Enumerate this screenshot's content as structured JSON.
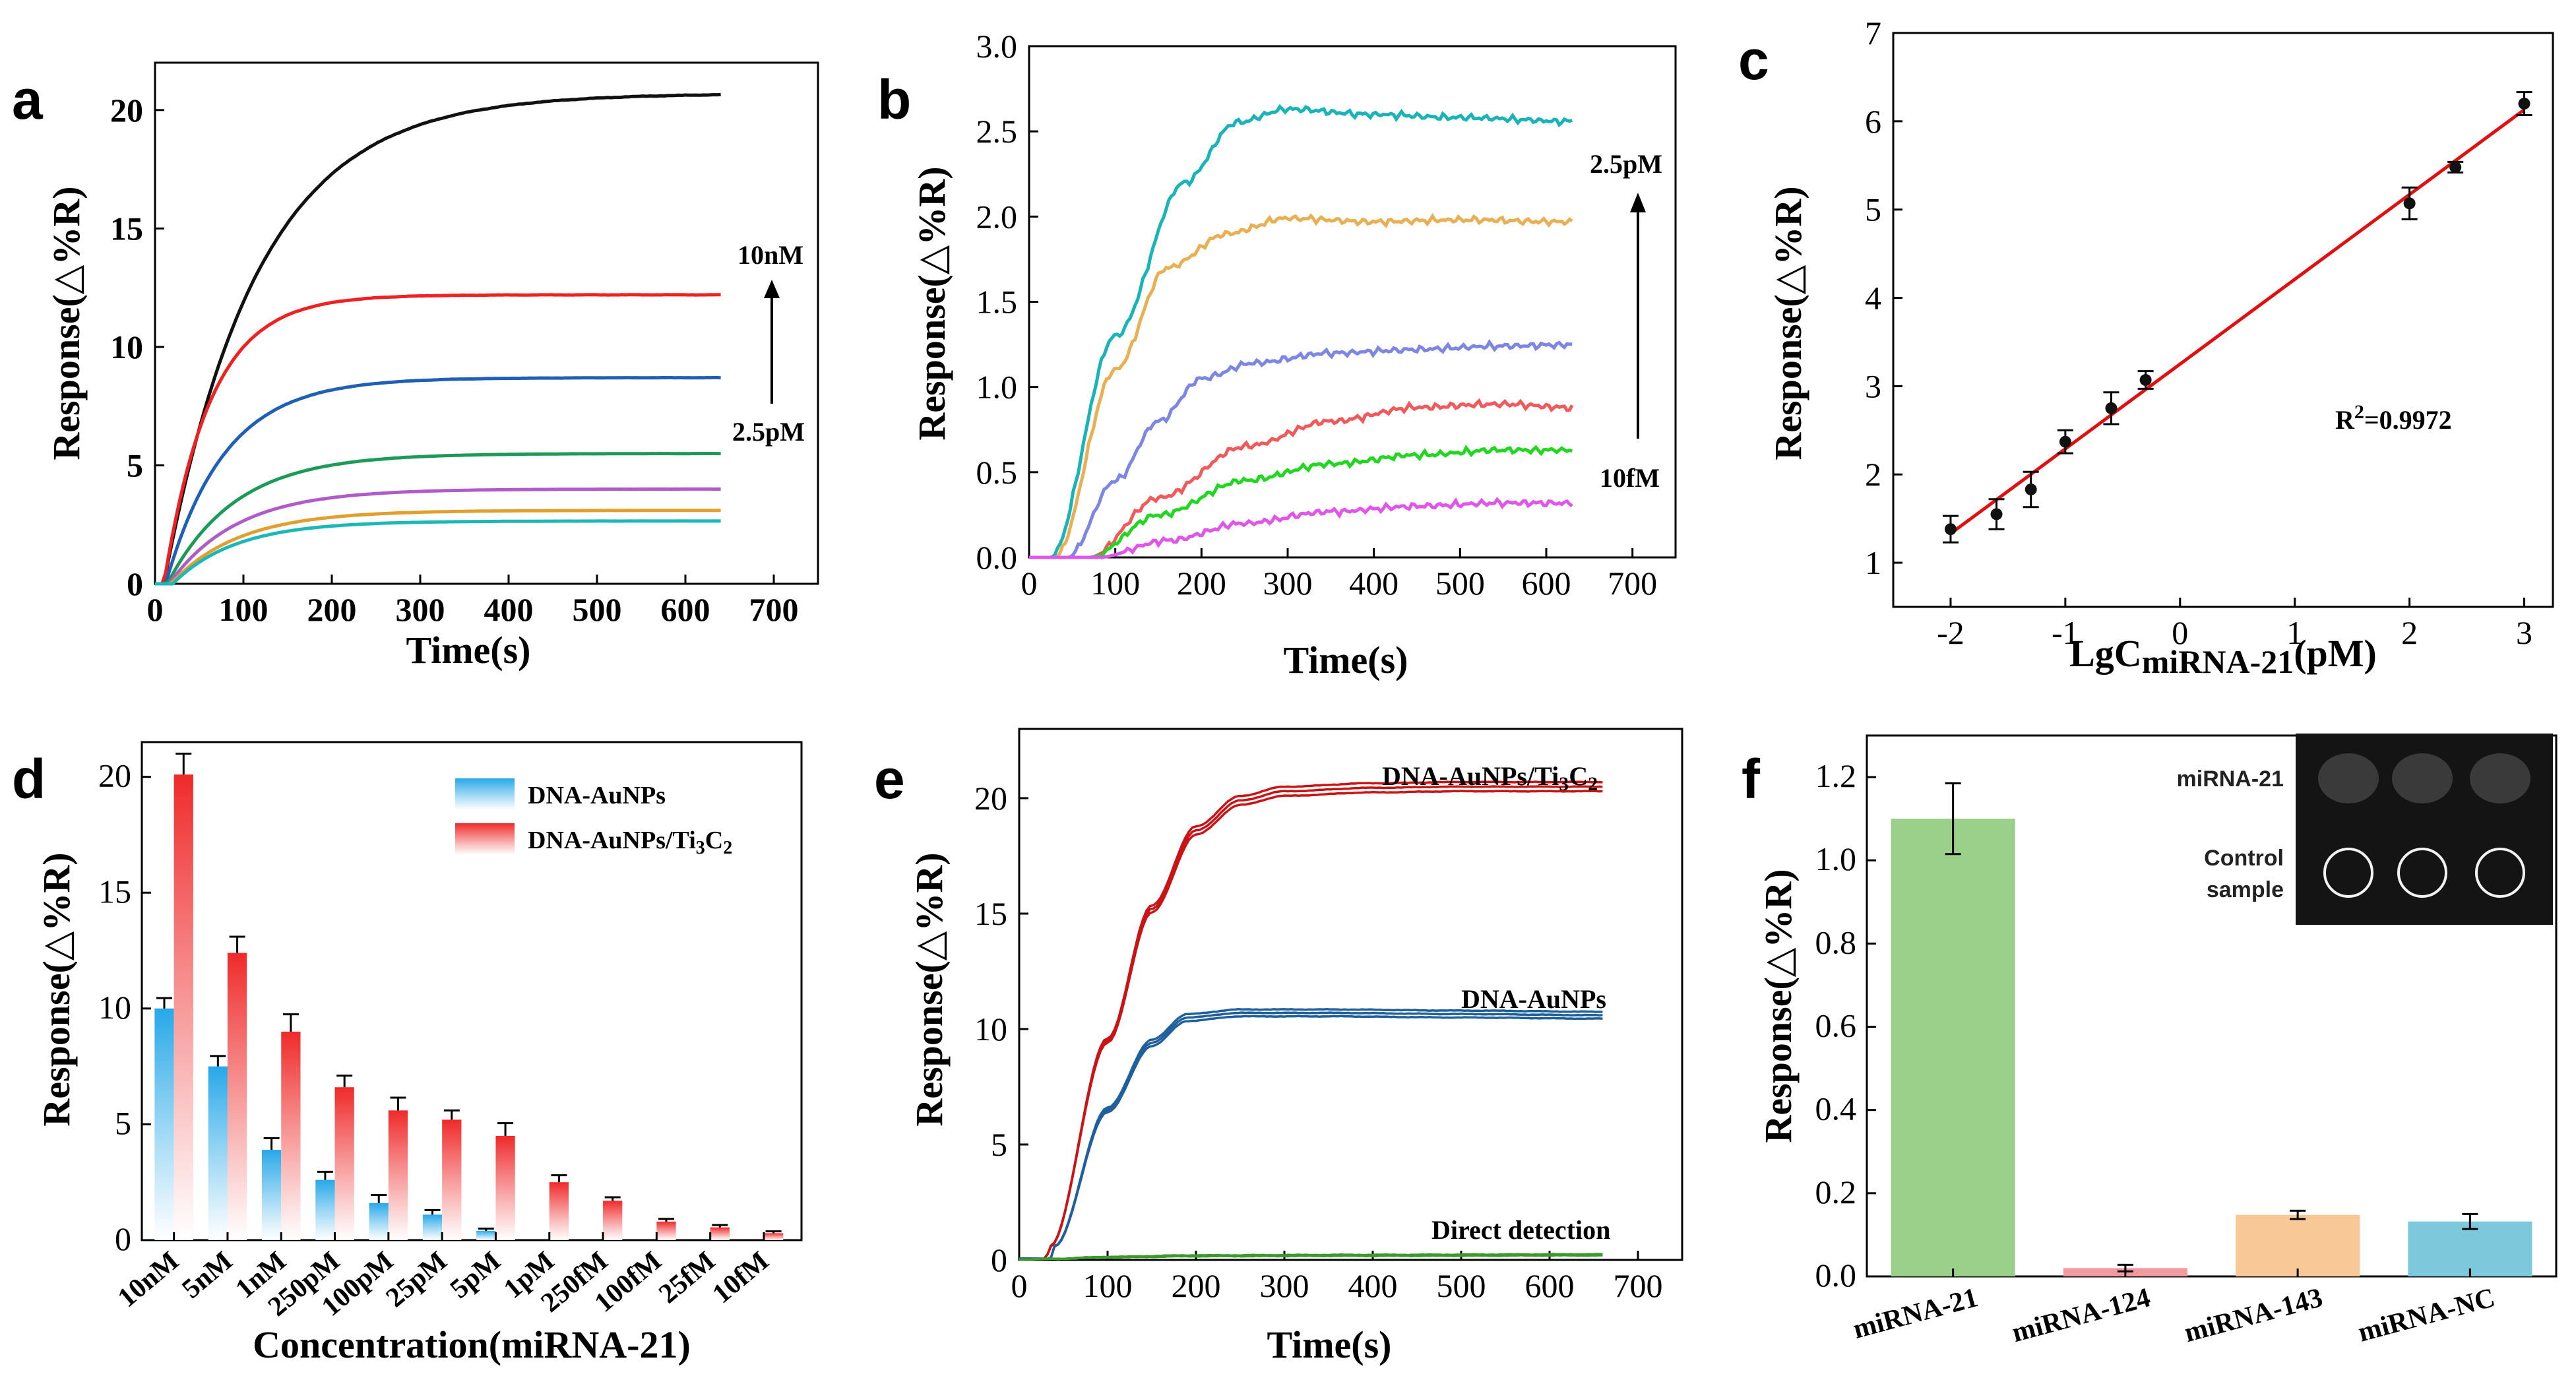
{
  "colors": {
    "black": "#111111",
    "red": "#ee2222",
    "blue": "#1f5fb4",
    "green": "#1e9a58",
    "purple": "#b05cc8",
    "orange": "#e0a030",
    "cyan": "#1cb8b8",
    "b_cyan": "#19b3b8",
    "b_orange": "#e8b055",
    "b_purple": "#7d86e0",
    "b_red": "#f05a5a",
    "b_green": "#22d622",
    "b_magenta": "#e056e8",
    "fit_red": "#e01010",
    "bar_blue": "#27a8e8",
    "bar_red": "#ef2a2a",
    "f_green": "#9bd08a",
    "f_pink": "#f39aa0",
    "f_orange": "#f8c896",
    "f_teal": "#7ec8dc",
    "e_red": "#c81414",
    "e_blue": "#1f5f9c",
    "e_green": "#3a9a2a"
  },
  "panels": {
    "a": {
      "letter": "a",
      "annot_top": "10nM",
      "annot_bottom": "2.5pM"
    },
    "b": {
      "letter": "b",
      "annot_top": "2.5pM",
      "annot_bottom": "10fM"
    },
    "c": {
      "letter": "c",
      "r2_prefix": "R",
      "r2_sup": "2",
      "r2_value": "=0.9972"
    },
    "d": {
      "letter": "d",
      "legend_1": "DNA-AuNPs",
      "legend_2_main": "DNA-AuNPs/Ti",
      "legend_2_s1": "3",
      "legend_2_mid": "C",
      "legend_2_s2": "2"
    },
    "e": {
      "letter": "e",
      "label_1_main": "DNA-AuNPs/Ti",
      "label_1_s1": "3",
      "label_1_mid": "C",
      "label_1_s2": "2",
      "label_2": "DNA-AuNPs",
      "label_3": "Direct detection"
    },
    "f": {
      "letter": "f",
      "inset_row1": "miRNA-21",
      "inset_row2_a": "Control",
      "inset_row2_b": "sample"
    }
  },
  "chart_data": [
    {
      "panel": "a",
      "type": "line",
      "xlabel": "Time(s)",
      "ylabel": "Response(△%R)",
      "xlim": [
        0,
        750
      ],
      "ylim": [
        0,
        22
      ],
      "xticks": [
        0,
        100,
        200,
        300,
        400,
        500,
        600,
        700
      ],
      "yticks": [
        0,
        5,
        10,
        15,
        20
      ],
      "series": [
        {
          "name": "10nM",
          "color_key": "black",
          "t0": 10,
          "k": 0.0095,
          "plateau": 20.7
        },
        {
          "name": "series-2",
          "color_key": "red",
          "t0": 10,
          "k": 0.019,
          "plateau": 12.2
        },
        {
          "name": "series-3",
          "color_key": "blue",
          "t0": 12,
          "k": 0.015,
          "plateau": 8.7
        },
        {
          "name": "series-4",
          "color_key": "green",
          "t0": 14,
          "k": 0.013,
          "plateau": 5.5
        },
        {
          "name": "series-5",
          "color_key": "purple",
          "t0": 16,
          "k": 0.013,
          "plateau": 4.0
        },
        {
          "name": "series-6",
          "color_key": "orange",
          "t0": 18,
          "k": 0.013,
          "plateau": 3.1
        },
        {
          "name": "2.5pM",
          "color_key": "cyan",
          "t0": 20,
          "k": 0.014,
          "plateau": 2.65
        }
      ]
    },
    {
      "panel": "b",
      "type": "line",
      "xlabel": "Time(s)",
      "ylabel": "Response(△%R)",
      "xlim": [
        0,
        750
      ],
      "ylim": [
        0,
        3.0
      ],
      "xticks": [
        0,
        100,
        200,
        300,
        400,
        500,
        600,
        700
      ],
      "yticks": [
        0.0,
        0.5,
        1.0,
        1.5,
        2.0,
        2.5,
        3.0
      ],
      "series": [
        {
          "name": "2.5pM",
          "color_key": "b_cyan",
          "points": [
            [
              0,
              0
            ],
            [
              25,
              0
            ],
            [
              100,
              1.3
            ],
            [
              180,
              2.2
            ],
            [
              240,
              2.55
            ],
            [
              300,
              2.63
            ],
            [
              400,
              2.6
            ],
            [
              500,
              2.58
            ],
            [
              630,
              2.56
            ]
          ]
        },
        {
          "name": "series-2",
          "color_key": "b_orange",
          "points": [
            [
              0,
              0
            ],
            [
              30,
              0
            ],
            [
              100,
              1.1
            ],
            [
              160,
              1.7
            ],
            [
              230,
              1.9
            ],
            [
              300,
              1.99
            ],
            [
              400,
              1.97
            ],
            [
              500,
              1.98
            ],
            [
              630,
              1.97
            ]
          ]
        },
        {
          "name": "series-3",
          "color_key": "b_purple",
          "points": [
            [
              0,
              0
            ],
            [
              45,
              0
            ],
            [
              100,
              0.45
            ],
            [
              150,
              0.8
            ],
            [
              200,
              1.05
            ],
            [
              260,
              1.14
            ],
            [
              350,
              1.2
            ],
            [
              450,
              1.22
            ],
            [
              550,
              1.24
            ],
            [
              630,
              1.25
            ]
          ]
        },
        {
          "name": "series-4",
          "color_key": "b_red",
          "points": [
            [
              0,
              0
            ],
            [
              70,
              0
            ],
            [
              150,
              0.35
            ],
            [
              250,
              0.65
            ],
            [
              350,
              0.8
            ],
            [
              450,
              0.88
            ],
            [
              550,
              0.9
            ],
            [
              630,
              0.88
            ]
          ]
        },
        {
          "name": "series-5",
          "color_key": "b_green",
          "points": [
            [
              0,
              0
            ],
            [
              70,
              0
            ],
            [
              150,
              0.25
            ],
            [
              250,
              0.45
            ],
            [
              350,
              0.55
            ],
            [
              450,
              0.6
            ],
            [
              550,
              0.63
            ],
            [
              630,
              0.63
            ]
          ]
        },
        {
          "name": "10fM",
          "color_key": "b_magenta",
          "points": [
            [
              0,
              0
            ],
            [
              80,
              0
            ],
            [
              160,
              0.1
            ],
            [
              250,
              0.2
            ],
            [
              350,
              0.27
            ],
            [
              450,
              0.3
            ],
            [
              550,
              0.32
            ],
            [
              630,
              0.32
            ]
          ]
        }
      ]
    },
    {
      "panel": "c",
      "type": "scatter",
      "xlabel_main": "LgC",
      "xlabel_sub": "miRNA-21",
      "xlabel_tail": "(pM)",
      "ylabel": "Response(△%R)",
      "xlim": [
        -2.5,
        3.25
      ],
      "ylim": [
        0.5,
        7
      ],
      "xticks": [
        -2,
        -1,
        0,
        1,
        2,
        3
      ],
      "yticks": [
        1,
        2,
        3,
        4,
        5,
        6,
        7
      ],
      "points": [
        {
          "x": -2.0,
          "y": 1.38,
          "err": 0.15
        },
        {
          "x": -1.6,
          "y": 1.55,
          "err": 0.17
        },
        {
          "x": -1.3,
          "y": 1.83,
          "err": 0.2
        },
        {
          "x": -1.0,
          "y": 2.37,
          "err": 0.13
        },
        {
          "x": -0.6,
          "y": 2.75,
          "err": 0.18
        },
        {
          "x": -0.3,
          "y": 3.07,
          "err": 0.1
        },
        {
          "x": 2.0,
          "y": 5.07,
          "err": 0.18
        },
        {
          "x": 2.4,
          "y": 5.48,
          "err": 0.06
        },
        {
          "x": 3.0,
          "y": 6.2,
          "err": 0.13
        }
      ],
      "fit": {
        "x0": -2.0,
        "y0": 1.33,
        "x1": 3.0,
        "y1": 6.13
      },
      "r2": "0.9972"
    },
    {
      "panel": "d",
      "type": "bar",
      "xlabel": "Concentration(miRNA-21)",
      "ylabel": "Response(△%R)",
      "ylim": [
        0,
        21.5
      ],
      "yticks": [
        0,
        5,
        10,
        15,
        20
      ],
      "categories": [
        "10nM",
        "5nM",
        "1nM",
        "250pM",
        "100pM",
        "25pM",
        "5pM",
        "1pM",
        "250fM",
        "100fM",
        "25fM",
        "10fM"
      ],
      "series": [
        {
          "name": "DNA-AuNPs",
          "color_key": "bar_blue",
          "values": [
            10.0,
            7.5,
            3.9,
            2.6,
            1.6,
            1.1,
            0.4,
            null,
            null,
            null,
            null,
            null
          ],
          "errors": [
            0.45,
            0.45,
            0.5,
            0.35,
            0.35,
            0.2,
            0.1,
            null,
            null,
            null,
            null,
            null
          ]
        },
        {
          "name": "DNA-AuNPs/Ti3C2",
          "color_key": "bar_red",
          "values": [
            20.1,
            12.4,
            9.0,
            6.6,
            5.6,
            5.2,
            4.5,
            2.5,
            1.7,
            0.8,
            0.55,
            0.3
          ],
          "errors": [
            0.9,
            0.7,
            0.75,
            0.5,
            0.55,
            0.4,
            0.55,
            0.3,
            0.15,
            0.12,
            0.1,
            0.08
          ]
        }
      ]
    },
    {
      "panel": "e",
      "type": "line",
      "xlabel": "Time(s)",
      "ylabel": "Response(△%R)",
      "xlim": [
        0,
        750
      ],
      "ylim": [
        0,
        23
      ],
      "xticks": [
        0,
        100,
        200,
        300,
        400,
        500,
        600,
        700
      ],
      "yticks": [
        0,
        5,
        10,
        15,
        20
      ],
      "series": [
        {
          "name": "DNA-AuNPs/Ti3C2",
          "color_key": "e_red",
          "points": [
            [
              0,
              0.05
            ],
            [
              30,
              0.05
            ],
            [
              35,
              0.6
            ],
            [
              100,
              9.5
            ],
            [
              150,
              15.2
            ],
            [
              200,
              18.6
            ],
            [
              250,
              19.9
            ],
            [
              300,
              20.3
            ],
            [
              400,
              20.45
            ],
            [
              500,
              20.5
            ],
            [
              660,
              20.5
            ]
          ],
          "replicates": 3,
          "spread": 0.2
        },
        {
          "name": "DNA-AuNPs",
          "color_key": "e_blue",
          "points": [
            [
              0,
              0.05
            ],
            [
              35,
              0.05
            ],
            [
              40,
              0.6
            ],
            [
              100,
              6.5
            ],
            [
              150,
              9.4
            ],
            [
              190,
              10.5
            ],
            [
              250,
              10.7
            ],
            [
              350,
              10.7
            ],
            [
              500,
              10.65
            ],
            [
              660,
              10.6
            ]
          ],
          "replicates": 3,
          "spread": 0.15
        },
        {
          "name": "Direct detection",
          "color_key": "e_green",
          "points": [
            [
              0,
              0.02
            ],
            [
              40,
              0.05
            ],
            [
              100,
              0.12
            ],
            [
              200,
              0.18
            ],
            [
              400,
              0.2
            ],
            [
              660,
              0.22
            ]
          ],
          "replicates": 2,
          "spread": 0.05
        }
      ]
    },
    {
      "panel": "f",
      "type": "bar",
      "xlabel": "",
      "ylabel": "Response(△%R)",
      "ylim": [
        0,
        1.3
      ],
      "yticks": [
        0.0,
        0.2,
        0.4,
        0.6,
        0.8,
        1.0,
        1.2
      ],
      "categories": [
        "miRNA-21",
        "miRNA-124",
        "miRNA-143",
        "miRNA-NC"
      ],
      "color_keys": [
        "f_green",
        "f_pink",
        "f_orange",
        "f_teal"
      ],
      "values": [
        1.1,
        0.02,
        0.148,
        0.132
      ],
      "errors": [
        0.085,
        0.008,
        0.01,
        0.018
      ]
    }
  ]
}
